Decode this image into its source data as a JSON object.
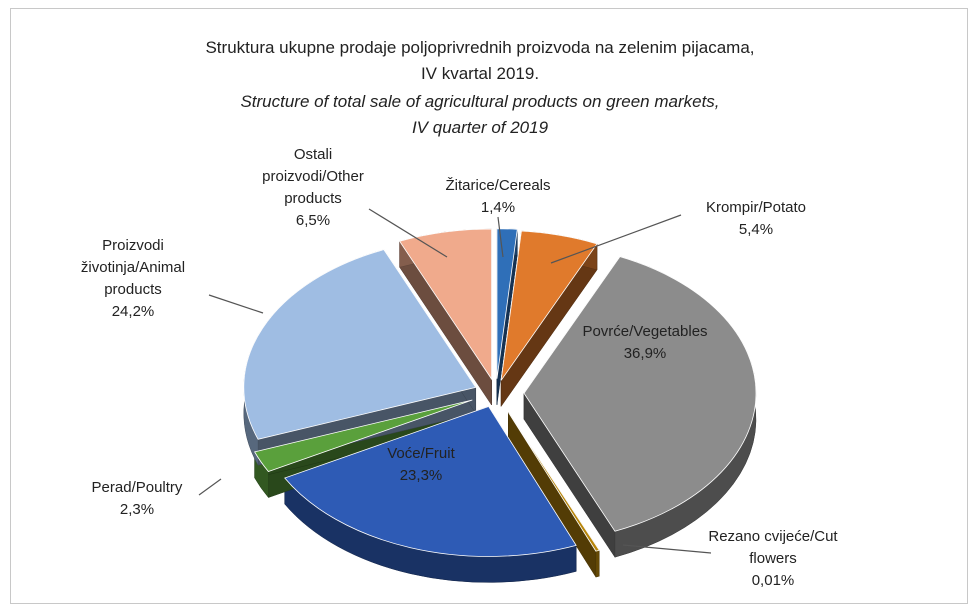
{
  "chart_data": {
    "type": "pie",
    "title_lines": [
      "Struktura ukupne prodaje poljoprivrednih proizvoda na zelenim  pijacama,",
      "IV kvartal 2019."
    ],
    "subtitle_lines": [
      "Structure of total sale of agricultural products on green markets,",
      "IV quarter of 2019"
    ],
    "slices": [
      {
        "label_lines": [
          "Žitarice/Cereals"
        ],
        "value_text": "1,4%",
        "value": 1.4,
        "color": "#2f6fb8"
      },
      {
        "label_lines": [
          "Krompir/Potato"
        ],
        "value_text": "5,4%",
        "value": 5.4,
        "color": "#e07a2c"
      },
      {
        "label_lines": [
          "Povrće/Vegetables"
        ],
        "value_text": "36,9%",
        "value": 36.9,
        "color": "#8c8c8c"
      },
      {
        "label_lines": [
          "Rezano cvijeće/Cut",
          "flowers"
        ],
        "value_text": "0,01%",
        "value": 0.01,
        "color": "#b8860b"
      },
      {
        "label_lines": [
          "Voće/Fruit"
        ],
        "value_text": "23,3%",
        "value": 23.3,
        "color": "#2e5bb5"
      },
      {
        "label_lines": [
          "Perad/Poultry"
        ],
        "value_text": "2,3%",
        "value": 2.3,
        "color": "#5aa03c"
      },
      {
        "label_lines": [
          "Proizvodi",
          "životinja/Animal",
          "products"
        ],
        "value_text": "24,2%",
        "value": 24.2,
        "color": "#9fbde3"
      },
      {
        "label_lines": [
          "Ostali",
          "proizvodi/Other",
          "products"
        ],
        "value_text": "6,5%",
        "value": 6.5,
        "color": "#f0aa8c"
      }
    ]
  }
}
